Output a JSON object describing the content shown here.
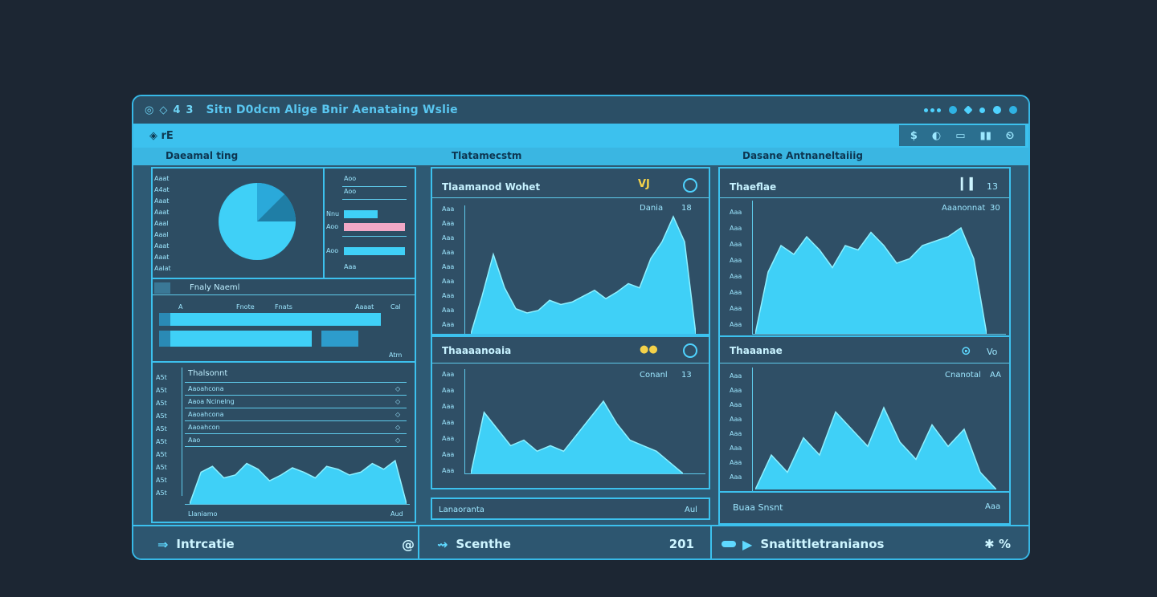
{
  "window": {
    "title": "Sitn D0dcm Alige Bnir Aenataing Wslie",
    "titlebar_left_glyphs": [
      "◎",
      "◇",
      "4",
      "3"
    ],
    "titlebar_right_icons": [
      "more-dots-icon",
      "circle-icon",
      "diamond-icon",
      "circle-icon",
      "circle-icon"
    ]
  },
  "toolbar": {
    "left_label": "◈ rE",
    "right_icons": [
      {
        "name": "dollar-icon",
        "glyph": "$"
      },
      {
        "name": "refresh-icon",
        "glyph": "◐"
      },
      {
        "name": "window-icon",
        "glyph": "▭"
      },
      {
        "name": "chart-icon",
        "glyph": "▮▮"
      },
      {
        "name": "clock-icon",
        "glyph": "⏲"
      }
    ]
  },
  "sections": {
    "left": "Daeamal ting",
    "middle": "Tlatamecstm",
    "right": "Dasane Antnaneltaiiig"
  },
  "left_panel": {
    "pie_legend": [
      "Aaat",
      "A4at",
      "Aaat",
      "Aaat",
      "Aaal",
      "Aaal",
      "Aaat",
      "Aaat",
      "Aalat"
    ],
    "bar_legend_labels": [
      "Aoo",
      "Aoo",
      "Nnu",
      "Aoo",
      "Aoo",
      "Aoo",
      "Aaa"
    ],
    "pie_slices": [
      0.72,
      0.12,
      0.16
    ],
    "h_bars_pct": [
      0.72,
      0.72,
      0.98,
      0.72
    ],
    "h_bar_colors": [
      "#3fd0f7",
      "#3fd0f7",
      "#f1a8c6",
      "#3fd0f7"
    ],
    "mid_title": "Fnaly Naeml",
    "mid_headers": [
      "A",
      "Fnote",
      "Fnats",
      "Aaaat",
      "Cal"
    ],
    "mid_bars_pct": [
      0.9,
      0.62
    ],
    "mid_footer": "Atm",
    "table_title": "Thalsonnt",
    "table_rows": [
      "Aaoahcona",
      "Aaoa Ncinelng",
      "Aaoahcona",
      "Aaoahcon",
      "Aao"
    ],
    "table_row_icons": [
      "◇",
      "◇",
      "◇",
      "◇",
      "◇"
    ],
    "table_y_ticks": [
      "A5t",
      "A5t",
      "A5t",
      "A5t",
      "A5t",
      "A5t",
      "A5t",
      "A5t",
      "A5t",
      "A5t"
    ],
    "footer_left": "Llaniamo",
    "footer_right": "Aud"
  },
  "middle_panel": {
    "chart1": {
      "title": "Tlaamanod Wohet",
      "badge": "VJ",
      "legend": "Dania",
      "legend_val": "18",
      "y_ticks": [
        "Aaa",
        "Aaa",
        "Aaa",
        "Aaa",
        "Aaa",
        "Aaa",
        "Aaa",
        "Aaa",
        "Aaa"
      ]
    },
    "chart2": {
      "title": "Thaaaanoaia",
      "badge": "●●",
      "legend": "Conanl",
      "legend_val": "13",
      "y_ticks": [
        "Aaa",
        "Aaa",
        "Aaa",
        "Aaa",
        "Aaa",
        "Aaa",
        "Aaa"
      ]
    },
    "footer_label": "Lanaoranta",
    "footer_right": "Aul"
  },
  "right_panel": {
    "chart1": {
      "title": "Thaeflae",
      "legend": "Aaanonnat",
      "legend_val": "30",
      "header_icon": "▎▍",
      "header_val": "13",
      "y_ticks": [
        "Aaa",
        "Aaa",
        "Aaa",
        "Aaa",
        "Aaa",
        "Aaa",
        "Aaa",
        "Aaa"
      ]
    },
    "chart2": {
      "title": "Thaaanae",
      "legend": "Cnanotal",
      "legend_val": "AA",
      "header_icon": "⊙",
      "header_val": "Vo",
      "y_ticks": [
        "Aaa",
        "Aaa",
        "Aaa",
        "Aaa",
        "Aaa",
        "Aaa",
        "Aaa",
        "Aaa"
      ]
    },
    "footer_left": "Buaa Snsnt",
    "footer_right": "Aaa"
  },
  "bottom_bar": {
    "seg1_label": "Intrcatie",
    "seg1_icon": "⇒",
    "seg1_right_icon": "@",
    "seg2_label": "Scenthe",
    "seg2_icon": "⇝",
    "seg2_value": "201",
    "seg3_label": "Snatittletranianos",
    "seg3_icon": "▶",
    "seg3_right": "✱ %"
  },
  "chart_data": [
    {
      "type": "area",
      "x": [
        0,
        1,
        2,
        3,
        4,
        5,
        6,
        7,
        8,
        9,
        10,
        11,
        12,
        13,
        14,
        15,
        16,
        17,
        18,
        19,
        20
      ],
      "values": [
        0,
        45,
        95,
        55,
        30,
        25,
        28,
        40,
        35,
        38,
        45,
        52,
        42,
        50,
        60,
        55,
        90,
        110,
        140,
        110,
        0
      ]
    },
    {
      "type": "area",
      "x": [
        0,
        1,
        2,
        3,
        4,
        5,
        6,
        7,
        8,
        9,
        10,
        11,
        12,
        13,
        14,
        15,
        16
      ],
      "values": [
        0,
        55,
        40,
        25,
        30,
        20,
        25,
        20,
        35,
        50,
        65,
        45,
        30,
        25,
        20,
        10,
        0
      ]
    },
    {
      "type": "area",
      "x": [
        0,
        1,
        2,
        3,
        4,
        5,
        6,
        7,
        8,
        9,
        10,
        11,
        12,
        13,
        14,
        15,
        16,
        17,
        18
      ],
      "values": [
        0,
        70,
        100,
        90,
        110,
        95,
        75,
        100,
        95,
        115,
        100,
        80,
        85,
        100,
        105,
        110,
        120,
        85,
        0
      ]
    },
    {
      "type": "area",
      "x": [
        0,
        1,
        2,
        3,
        4,
        5,
        6,
        7,
        8,
        9,
        10,
        11,
        12,
        13,
        14,
        15
      ],
      "values": [
        0,
        40,
        20,
        60,
        40,
        90,
        70,
        50,
        95,
        55,
        35,
        75,
        50,
        70,
        20,
        0
      ]
    },
    {
      "type": "area",
      "x": [
        0,
        1,
        2,
        3,
        4,
        5,
        6,
        7,
        8,
        9,
        10,
        11,
        12,
        13,
        14,
        15,
        16,
        17,
        18,
        19
      ],
      "values": [
        0,
        22,
        26,
        18,
        20,
        28,
        24,
        16,
        20,
        25,
        22,
        18,
        26,
        24,
        20,
        22,
        28,
        24,
        30,
        0
      ]
    }
  ]
}
